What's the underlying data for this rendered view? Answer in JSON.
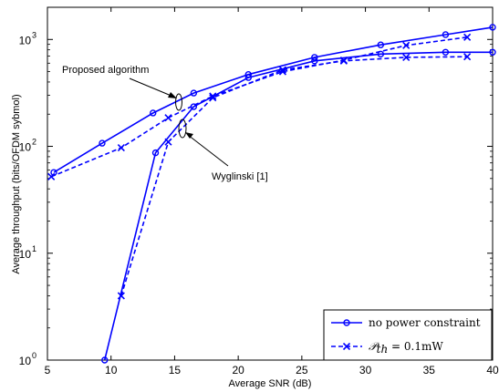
{
  "chart_data": {
    "type": "line",
    "xlabel": "Average SNR (dB)",
    "ylabel": "Average throughput (bits/OFDM sybmol)",
    "xlim": [
      5,
      40
    ],
    "ylim": [
      1,
      2000
    ],
    "y_scale": "log",
    "grid": false,
    "legend_position": "bottom-right",
    "x_ticks": [
      5,
      10,
      15,
      20,
      25,
      30,
      35,
      40
    ],
    "x_tick_labels": [
      "5",
      "10",
      "15",
      "20",
      "25",
      "30",
      "35",
      "40"
    ],
    "y_ticks": [
      1,
      10,
      100,
      1000
    ],
    "y_tick_labels": [
      "10",
      "10",
      "10",
      "10"
    ],
    "y_tick_exponents": [
      "0",
      "1",
      "2",
      "3"
    ],
    "series": [
      {
        "name": "no power constraint",
        "group": "Proposed algorithm",
        "style": "solid",
        "marker": "circle",
        "color": "#0000ff",
        "x": [
          5.5,
          9.3,
          13.3,
          16.5,
          20.8,
          26.0,
          31.2,
          36.3,
          40.0
        ],
        "y": [
          57,
          107,
          205,
          315,
          470,
          680,
          890,
          1110,
          1300
        ]
      },
      {
        "name": "P_th = 0.1mW",
        "group": "Proposed algorithm",
        "style": "dashed",
        "marker": "x",
        "color": "#0000ff",
        "x": [
          5.3,
          10.8,
          14.5,
          18.0,
          23.5,
          28.3,
          33.2,
          38.0
        ],
        "y": [
          52,
          97,
          185,
          295,
          500,
          640,
          880,
          1050
        ]
      },
      {
        "name": "no power constraint",
        "group": "Wyglinski [1]",
        "style": "solid",
        "marker": "circle",
        "color": "#0000ff",
        "x": [
          9.5,
          13.5,
          16.5,
          20.8,
          26.0,
          31.2,
          36.3,
          40.0
        ],
        "y": [
          1,
          87,
          235,
          440,
          630,
          730,
          760,
          760
        ]
      },
      {
        "name": "P_th = 0.1mW",
        "group": "Wyglinski [1]",
        "style": "dashed",
        "marker": "x",
        "color": "#0000ff",
        "x": [
          10.8,
          14.5,
          18.0,
          23.5,
          28.3,
          33.2,
          38.0
        ],
        "y": [
          4,
          110,
          285,
          520,
          630,
          680,
          690
        ]
      }
    ],
    "annotations": [
      {
        "text": "Proposed algorithm"
      },
      {
        "text": "Wyglinski [1]"
      }
    ],
    "legend": [
      {
        "label": "no power constraint",
        "style": "solid",
        "marker": "circle"
      },
      {
        "label_math": "𝒫",
        "label_sub": "th",
        "label_rest": " = 0.1mW",
        "style": "dashed",
        "marker": "x"
      }
    ]
  }
}
